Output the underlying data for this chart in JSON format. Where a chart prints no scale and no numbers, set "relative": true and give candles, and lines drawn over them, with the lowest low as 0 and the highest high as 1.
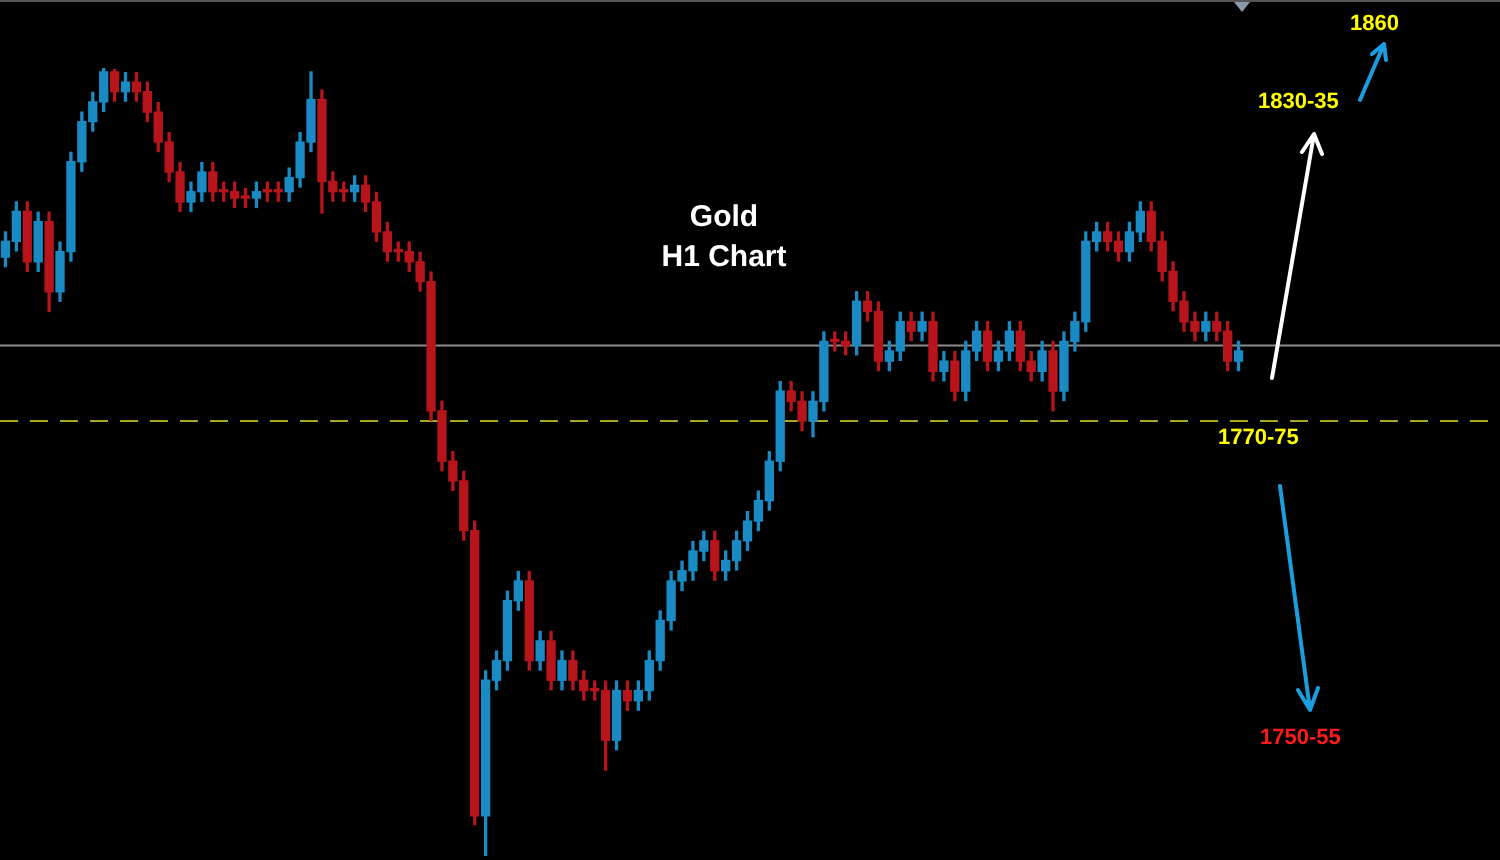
{
  "chart_data": {
    "type": "candlestick",
    "title": "Gold",
    "subtitle": "H1 Chart",
    "relative": true,
    "categories": [
      null,
      null,
      null,
      null,
      null,
      null,
      null,
      null,
      null,
      null,
      null,
      null,
      null,
      null,
      null,
      null,
      null,
      null,
      null,
      null,
      null,
      null,
      null,
      null,
      null,
      null,
      null,
      null,
      null,
      null,
      null,
      null,
      null,
      null,
      null,
      null,
      null,
      null,
      null,
      null,
      null,
      null,
      null,
      null,
      null,
      null,
      null,
      null,
      null,
      null,
      null,
      null,
      null,
      null,
      null,
      null,
      null,
      null,
      null,
      null,
      null,
      null,
      null,
      null,
      null,
      null,
      null,
      null,
      null,
      null,
      null,
      null,
      null,
      null,
      null,
      null,
      null,
      null,
      null,
      null,
      null,
      null,
      null,
      null,
      null,
      null,
      null,
      null,
      null,
      null,
      null,
      null,
      null,
      null,
      null,
      null,
      null,
      null,
      null,
      null,
      null,
      null,
      null,
      null,
      null,
      null,
      null,
      null,
      null,
      null,
      null,
      null,
      null,
      null
    ],
    "ohlc": [
      [
        0.76,
        0.792,
        0.748,
        0.78
      ],
      [
        0.78,
        0.83,
        0.768,
        0.818
      ],
      [
        0.818,
        0.83,
        0.742,
        0.754
      ],
      [
        0.754,
        0.817,
        0.742,
        0.805
      ],
      [
        0.805,
        0.817,
        0.691,
        0.716
      ],
      [
        0.716,
        0.779,
        0.704,
        0.767
      ],
      [
        0.767,
        0.893,
        0.755,
        0.881
      ],
      [
        0.881,
        0.944,
        0.869,
        0.932
      ],
      [
        0.932,
        0.969,
        0.92,
        0.957
      ],
      [
        0.957,
        1.0,
        0.945,
        0.995
      ],
      [
        0.995,
        0.998,
        0.958,
        0.97
      ],
      [
        0.97,
        0.994,
        0.958,
        0.982
      ],
      [
        0.982,
        0.994,
        0.958,
        0.97
      ],
      [
        0.97,
        0.982,
        0.932,
        0.944
      ],
      [
        0.944,
        0.956,
        0.894,
        0.906
      ],
      [
        0.906,
        0.918,
        0.856,
        0.868
      ],
      [
        0.868,
        0.88,
        0.818,
        0.83
      ],
      [
        0.83,
        0.855,
        0.818,
        0.843
      ],
      [
        0.843,
        0.88,
        0.831,
        0.868
      ],
      [
        0.868,
        0.88,
        0.831,
        0.843
      ],
      [
        0.843,
        0.855,
        0.831,
        0.843
      ],
      [
        0.843,
        0.855,
        0.823,
        0.835
      ],
      [
        0.835,
        0.847,
        0.823,
        0.835
      ],
      [
        0.835,
        0.855,
        0.823,
        0.843
      ],
      [
        0.843,
        0.855,
        0.831,
        0.843
      ],
      [
        0.843,
        0.855,
        0.831,
        0.843
      ],
      [
        0.843,
        0.873,
        0.831,
        0.861
      ],
      [
        0.861,
        0.918,
        0.849,
        0.906
      ],
      [
        0.906,
        0.995,
        0.894,
        0.96
      ],
      [
        0.96,
        0.972,
        0.816,
        0.856
      ],
      [
        0.856,
        0.868,
        0.831,
        0.843
      ],
      [
        0.843,
        0.855,
        0.831,
        0.843
      ],
      [
        0.843,
        0.863,
        0.831,
        0.851
      ],
      [
        0.851,
        0.863,
        0.818,
        0.83
      ],
      [
        0.83,
        0.842,
        0.78,
        0.792
      ],
      [
        0.792,
        0.804,
        0.755,
        0.767
      ],
      [
        0.767,
        0.779,
        0.755,
        0.767
      ],
      [
        0.767,
        0.779,
        0.742,
        0.754
      ],
      [
        0.754,
        0.766,
        0.717,
        0.729
      ],
      [
        0.729,
        0.741,
        0.553,
        0.565
      ],
      [
        0.565,
        0.577,
        0.489,
        0.501
      ],
      [
        0.501,
        0.513,
        0.464,
        0.476
      ],
      [
        0.476,
        0.488,
        0.401,
        0.413
      ],
      [
        0.413,
        0.425,
        0.04,
        0.051
      ],
      [
        0.051,
        0.235,
        0.0,
        0.223
      ],
      [
        0.223,
        0.26,
        0.211,
        0.248
      ],
      [
        0.248,
        0.336,
        0.236,
        0.324
      ],
      [
        0.324,
        0.361,
        0.312,
        0.349
      ],
      [
        0.349,
        0.361,
        0.236,
        0.248
      ],
      [
        0.248,
        0.285,
        0.236,
        0.273
      ],
      [
        0.273,
        0.285,
        0.211,
        0.223
      ],
      [
        0.223,
        0.26,
        0.211,
        0.248
      ],
      [
        0.248,
        0.26,
        0.211,
        0.223
      ],
      [
        0.223,
        0.235,
        0.198,
        0.21
      ],
      [
        0.21,
        0.222,
        0.198,
        0.21
      ],
      [
        0.21,
        0.222,
        0.109,
        0.147
      ],
      [
        0.147,
        0.222,
        0.135,
        0.21
      ],
      [
        0.21,
        0.222,
        0.185,
        0.197
      ],
      [
        0.197,
        0.222,
        0.185,
        0.21
      ],
      [
        0.21,
        0.26,
        0.198,
        0.248
      ],
      [
        0.248,
        0.311,
        0.236,
        0.299
      ],
      [
        0.299,
        0.361,
        0.287,
        0.349
      ],
      [
        0.349,
        0.374,
        0.337,
        0.362
      ],
      [
        0.362,
        0.399,
        0.35,
        0.387
      ],
      [
        0.387,
        0.412,
        0.375,
        0.4
      ],
      [
        0.4,
        0.412,
        0.35,
        0.362
      ],
      [
        0.362,
        0.387,
        0.35,
        0.375
      ],
      [
        0.375,
        0.412,
        0.363,
        0.4
      ],
      [
        0.4,
        0.437,
        0.388,
        0.425
      ],
      [
        0.425,
        0.463,
        0.413,
        0.451
      ],
      [
        0.451,
        0.513,
        0.439,
        0.501
      ],
      [
        0.501,
        0.602,
        0.489,
        0.59
      ],
      [
        0.59,
        0.602,
        0.565,
        0.577
      ],
      [
        0.577,
        0.589,
        0.54,
        0.552
      ],
      [
        0.552,
        0.589,
        0.532,
        0.577
      ],
      [
        0.577,
        0.665,
        0.565,
        0.653
      ],
      [
        0.653,
        0.665,
        0.641,
        0.653
      ],
      [
        0.653,
        0.665,
        0.636,
        0.648
      ],
      [
        0.648,
        0.716,
        0.636,
        0.704
      ],
      [
        0.704,
        0.716,
        0.679,
        0.691
      ],
      [
        0.691,
        0.703,
        0.616,
        0.628
      ],
      [
        0.628,
        0.653,
        0.616,
        0.641
      ],
      [
        0.641,
        0.69,
        0.629,
        0.678
      ],
      [
        0.678,
        0.69,
        0.654,
        0.666
      ],
      [
        0.666,
        0.69,
        0.654,
        0.678
      ],
      [
        0.678,
        0.69,
        0.603,
        0.615
      ],
      [
        0.615,
        0.64,
        0.603,
        0.628
      ],
      [
        0.628,
        0.64,
        0.578,
        0.59
      ],
      [
        0.59,
        0.653,
        0.578,
        0.641
      ],
      [
        0.641,
        0.678,
        0.629,
        0.666
      ],
      [
        0.666,
        0.678,
        0.616,
        0.628
      ],
      [
        0.628,
        0.653,
        0.616,
        0.641
      ],
      [
        0.641,
        0.678,
        0.629,
        0.666
      ],
      [
        0.666,
        0.678,
        0.616,
        0.628
      ],
      [
        0.628,
        0.64,
        0.603,
        0.615
      ],
      [
        0.615,
        0.653,
        0.603,
        0.641
      ],
      [
        0.641,
        0.653,
        0.565,
        0.59
      ],
      [
        0.59,
        0.665,
        0.578,
        0.653
      ],
      [
        0.653,
        0.69,
        0.641,
        0.678
      ],
      [
        0.678,
        0.792,
        0.666,
        0.78
      ],
      [
        0.78,
        0.804,
        0.768,
        0.792
      ],
      [
        0.792,
        0.804,
        0.768,
        0.78
      ],
      [
        0.78,
        0.792,
        0.755,
        0.767
      ],
      [
        0.767,
        0.804,
        0.755,
        0.792
      ],
      [
        0.792,
        0.83,
        0.78,
        0.818
      ],
      [
        0.818,
        0.83,
        0.768,
        0.78
      ],
      [
        0.78,
        0.792,
        0.73,
        0.742
      ],
      [
        0.742,
        0.754,
        0.692,
        0.704
      ],
      [
        0.704,
        0.716,
        0.666,
        0.678
      ],
      [
        0.678,
        0.69,
        0.654,
        0.666
      ],
      [
        0.666,
        0.69,
        0.654,
        0.678
      ],
      [
        0.678,
        0.69,
        0.654,
        0.666
      ],
      [
        0.666,
        0.678,
        0.616,
        0.628
      ],
      [
        0.628,
        0.653,
        0.616,
        0.641
      ]
    ],
    "colors": [
      "#1a8ac4",
      "#1a8ac4",
      "#b8141c",
      "#1a8ac4",
      "#b8141c",
      "#1a8ac4",
      "#1a8ac4",
      "#1a8ac4",
      "#1a8ac4",
      "#1a8ac4",
      "#b8141c",
      "#1a8ac4",
      "#b8141c",
      "#b8141c",
      "#b8141c",
      "#b8141c",
      "#b8141c",
      "#1a8ac4",
      "#1a8ac4",
      "#b8141c",
      "#b8141c",
      "#b8141c",
      "#b8141c",
      "#1a8ac4",
      "#b8141c",
      "#b8141c",
      "#1a8ac4",
      "#1a8ac4",
      "#1a8ac4",
      "#b8141c",
      "#b8141c",
      "#b8141c",
      "#1a8ac4",
      "#b8141c",
      "#b8141c",
      "#b8141c",
      "#b8141c",
      "#b8141c",
      "#b8141c",
      "#b8141c",
      "#b8141c",
      "#b8141c",
      "#b8141c",
      "#b8141c",
      "#1a8ac4",
      "#1a8ac4",
      "#1a8ac4",
      "#1a8ac4",
      "#b8141c",
      "#1a8ac4",
      "#b8141c",
      "#1a8ac4",
      "#b8141c",
      "#b8141c",
      "#b8141c",
      "#b8141c",
      "#1a8ac4",
      "#b8141c",
      "#1a8ac4",
      "#1a8ac4",
      "#1a8ac4",
      "#1a8ac4",
      "#1a8ac4",
      "#1a8ac4",
      "#1a8ac4",
      "#b8141c",
      "#1a8ac4",
      "#1a8ac4",
      "#1a8ac4",
      "#1a8ac4",
      "#1a8ac4",
      "#1a8ac4",
      "#b8141c",
      "#b8141c",
      "#1a8ac4",
      "#1a8ac4",
      "#b8141c",
      "#b8141c",
      "#1a8ac4",
      "#b8141c",
      "#b8141c",
      "#1a8ac4",
      "#1a8ac4",
      "#b8141c",
      "#1a8ac4",
      "#b8141c",
      "#1a8ac4",
      "#b8141c",
      "#1a8ac4",
      "#1a8ac4",
      "#b8141c",
      "#1a8ac4",
      "#1a8ac4",
      "#b8141c",
      "#b8141c",
      "#1a8ac4",
      "#b8141c",
      "#1a8ac4",
      "#1a8ac4",
      "#1a8ac4",
      "#1a8ac4",
      "#b8141c",
      "#b8141c",
      "#1a8ac4",
      "#1a8ac4",
      "#b8141c",
      "#b8141c",
      "#b8141c",
      "#b8141c",
      "#b8141c",
      "#1a8ac4",
      "#b8141c",
      "#b8141c",
      "#1a8ac4"
    ],
    "ref_lines": [
      {
        "axis": "y",
        "value": 0.648,
        "color": "#8c8c8c",
        "line_style": "solid"
      },
      {
        "axis": "y",
        "value": 0.552,
        "color": "#a8a820",
        "line_style": "dashed"
      }
    ],
    "annotations": [
      "1860",
      "1830-35",
      "1770-75",
      "1750-55"
    ]
  }
}
